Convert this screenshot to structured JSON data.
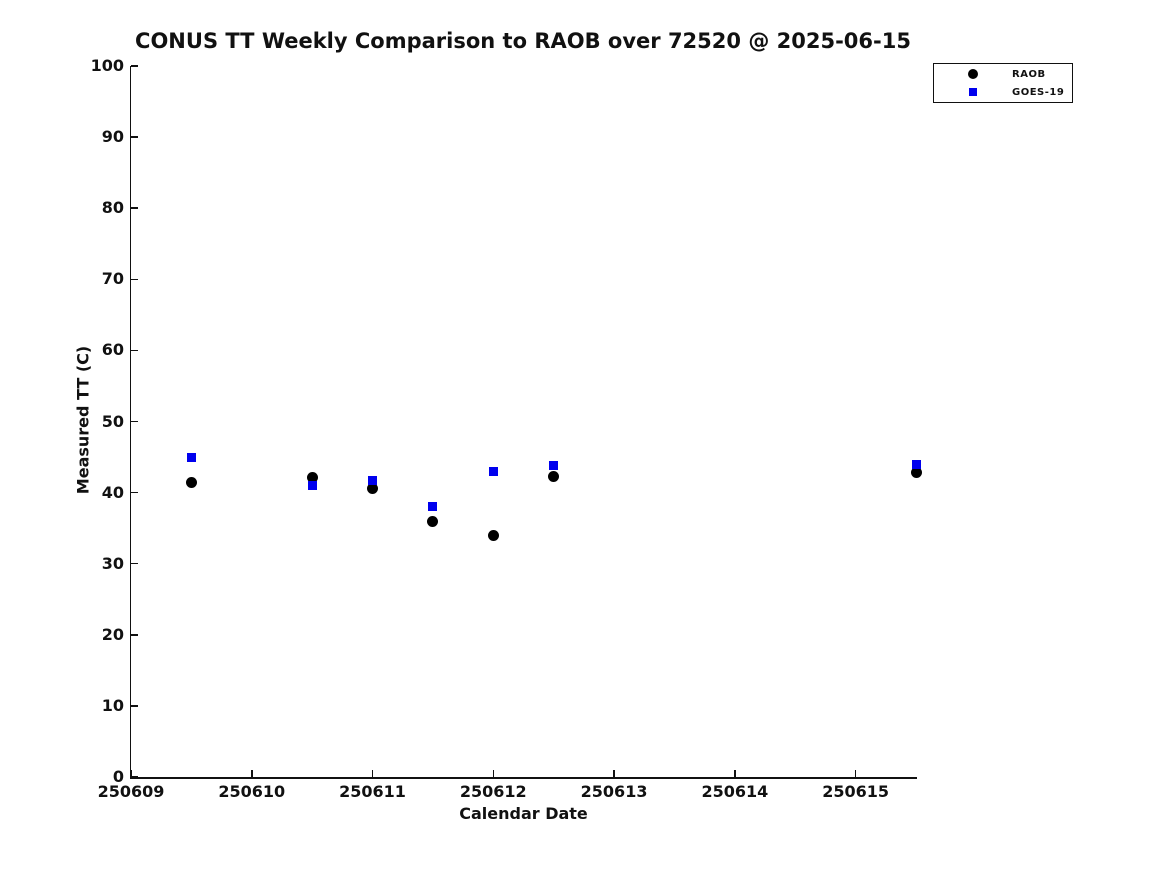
{
  "chart_data": {
    "type": "scatter",
    "title": "CONUS TT Weekly Comparison to RAOB over 72520 @ 2025-06-15",
    "xlabel": "Calendar Date",
    "ylabel": "Measured TT (C)",
    "xlim": [
      250609,
      250615.5
    ],
    "ylim": [
      0,
      100
    ],
    "xticks": [
      250609,
      250610,
      250611,
      250612,
      250613,
      250614,
      250615
    ],
    "yticks": [
      0,
      10,
      20,
      30,
      40,
      50,
      60,
      70,
      80,
      90,
      100
    ],
    "grid": false,
    "legend_position": "top-right",
    "x": [
      250609.5,
      250610.5,
      250611,
      250611.5,
      250612,
      250612.5,
      250615.5
    ],
    "series": [
      {
        "name": "RAOB",
        "marker": "circle",
        "color": "#000000",
        "values": [
          41.4,
          42.1,
          40.6,
          36.0,
          34.0,
          42.3,
          42.8
        ]
      },
      {
        "name": "GOES-19",
        "marker": "square",
        "color": "#0000ee",
        "values": [
          45.0,
          41.0,
          41.7,
          38.0,
          43.0,
          43.8,
          43.9
        ]
      }
    ]
  },
  "colors": {
    "axis": "#111111",
    "background": "#ffffff",
    "raob": "#000000",
    "goes19": "#0000ee"
  }
}
